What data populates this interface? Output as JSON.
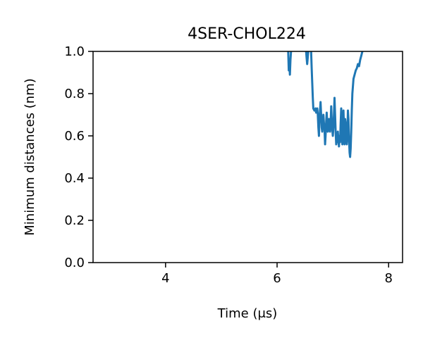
{
  "chart_data": {
    "type": "line",
    "title": "4SER-CHOL224",
    "xlabel": "Time (μs)",
    "ylabel": "Minimum distances (nm)",
    "xlim": [
      2.7,
      8.25
    ],
    "ylim": [
      0.0,
      1.0
    ],
    "xticks": [
      4,
      6,
      8
    ],
    "xtick_labels": [
      "4",
      "6",
      "8"
    ],
    "yticks": [
      0.0,
      0.2,
      0.4,
      0.6,
      0.8,
      1.0
    ],
    "ytick_labels": [
      "0.0",
      "0.2",
      "0.4",
      "0.6",
      "0.8",
      "1.0"
    ],
    "grid": false,
    "legend": false,
    "series_color": "#1f77b4",
    "segments": [
      [
        [
          6.2,
          1.0
        ],
        [
          6.21,
          0.91
        ],
        [
          6.22,
          0.95
        ],
        [
          6.23,
          0.89
        ],
        [
          6.24,
          0.96
        ],
        [
          6.25,
          1.0
        ]
      ],
      [
        [
          6.52,
          1.0
        ],
        [
          6.53,
          0.97
        ],
        [
          6.54,
          0.94
        ],
        [
          6.55,
          0.97
        ],
        [
          6.56,
          1.0
        ]
      ],
      [
        [
          6.61,
          1.0
        ],
        [
          6.62,
          0.92
        ],
        [
          6.63,
          0.85
        ],
        [
          6.64,
          0.78
        ],
        [
          6.65,
          0.73
        ],
        [
          6.67,
          0.72
        ],
        [
          6.69,
          0.73
        ],
        [
          6.7,
          0.71
        ],
        [
          6.72,
          0.73
        ],
        [
          6.73,
          0.7
        ],
        [
          6.74,
          0.64
        ],
        [
          6.75,
          0.6
        ],
        [
          6.76,
          0.68
        ],
        [
          6.77,
          0.72
        ],
        [
          6.78,
          0.76
        ],
        [
          6.79,
          0.7
        ],
        [
          6.8,
          0.64
        ],
        [
          6.81,
          0.62
        ],
        [
          6.82,
          0.66
        ],
        [
          6.83,
          0.7
        ],
        [
          6.84,
          0.66
        ],
        [
          6.85,
          0.63
        ],
        [
          6.86,
          0.56
        ],
        [
          6.87,
          0.6
        ],
        [
          6.88,
          0.66
        ],
        [
          6.89,
          0.71
        ],
        [
          6.9,
          0.66
        ],
        [
          6.91,
          0.62
        ],
        [
          6.92,
          0.64
        ],
        [
          6.93,
          0.68
        ],
        [
          6.94,
          0.64
        ],
        [
          6.95,
          0.62
        ],
        [
          6.96,
          0.66
        ],
        [
          6.97,
          0.74
        ],
        [
          6.98,
          0.68
        ],
        [
          6.99,
          0.63
        ],
        [
          7.0,
          0.6
        ],
        [
          7.01,
          0.64
        ],
        [
          7.02,
          0.7
        ],
        [
          7.03,
          0.78
        ],
        [
          7.04,
          0.7
        ],
        [
          7.05,
          0.62
        ],
        [
          7.06,
          0.56
        ],
        [
          7.07,
          0.6
        ],
        [
          7.08,
          0.57
        ],
        [
          7.09,
          0.62
        ],
        [
          7.1,
          0.58
        ],
        [
          7.11,
          0.55
        ],
        [
          7.12,
          0.6
        ],
        [
          7.13,
          0.57
        ],
        [
          7.14,
          0.66
        ],
        [
          7.15,
          0.73
        ],
        [
          7.16,
          0.64
        ],
        [
          7.17,
          0.56
        ],
        [
          7.18,
          0.62
        ],
        [
          7.19,
          0.72
        ],
        [
          7.2,
          0.64
        ],
        [
          7.21,
          0.56
        ],
        [
          7.22,
          0.68
        ],
        [
          7.23,
          0.66
        ],
        [
          7.24,
          0.58
        ],
        [
          7.25,
          0.56
        ],
        [
          7.26,
          0.6
        ],
        [
          7.27,
          0.72
        ],
        [
          7.28,
          0.68
        ],
        [
          7.29,
          0.58
        ],
        [
          7.3,
          0.52
        ],
        [
          7.31,
          0.5
        ],
        [
          7.32,
          0.54
        ],
        [
          7.33,
          0.62
        ],
        [
          7.34,
          0.72
        ],
        [
          7.35,
          0.8
        ],
        [
          7.37,
          0.87
        ],
        [
          7.39,
          0.89
        ],
        [
          7.41,
          0.91
        ],
        [
          7.43,
          0.92
        ],
        [
          7.45,
          0.94
        ],
        [
          7.47,
          0.93
        ],
        [
          7.49,
          0.96
        ],
        [
          7.51,
          0.98
        ],
        [
          7.53,
          1.0
        ]
      ]
    ]
  }
}
